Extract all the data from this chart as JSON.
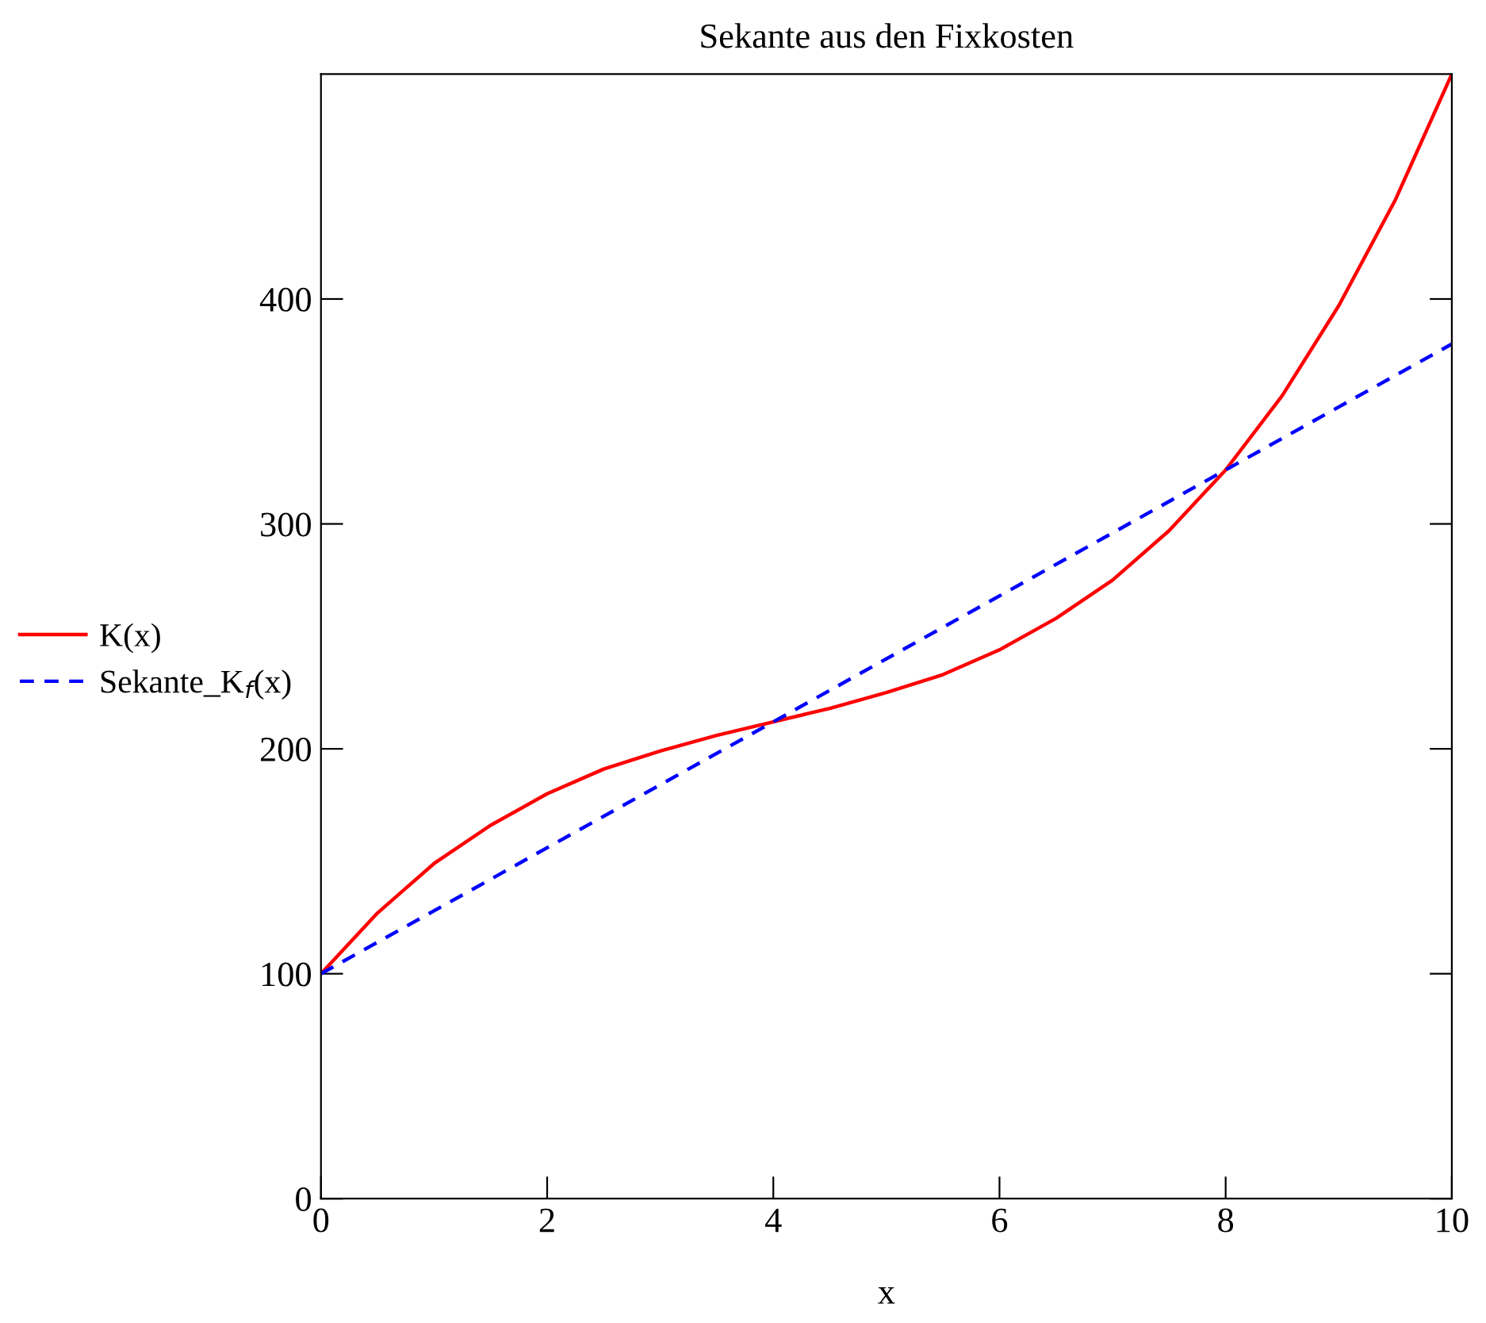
{
  "chart_data": {
    "type": "line",
    "title": "Sekante aus den Fixkosten",
    "xlabel": "x",
    "xlim": [
      0,
      10
    ],
    "ylim": [
      0,
      500
    ],
    "xticks": [
      0,
      2,
      4,
      6,
      8,
      10
    ],
    "yticks": [
      0,
      100,
      200,
      300,
      400
    ],
    "grid": false,
    "legend": "left",
    "marker": "none",
    "series": [
      {
        "name": "K(x)",
        "color": "#ff0000",
        "line_style": "solid",
        "x": [
          0,
          0.5,
          1,
          1.5,
          2,
          2.5,
          3,
          3.5,
          4,
          4.5,
          5,
          5.5,
          6,
          6.5,
          7,
          7.5,
          8,
          8.5,
          9,
          9.5,
          10
        ],
        "values": [
          100,
          127,
          149,
          166,
          180,
          191,
          199,
          206,
          212,
          218,
          225,
          233,
          244,
          258,
          275,
          297,
          324,
          357,
          397,
          444,
          500
        ]
      },
      {
        "name": "Sekante_K$_{f}$(x)",
        "color": "#0000ff",
        "line_style": "dashed",
        "x": [
          0,
          10
        ],
        "values": [
          100,
          380
        ]
      }
    ]
  }
}
